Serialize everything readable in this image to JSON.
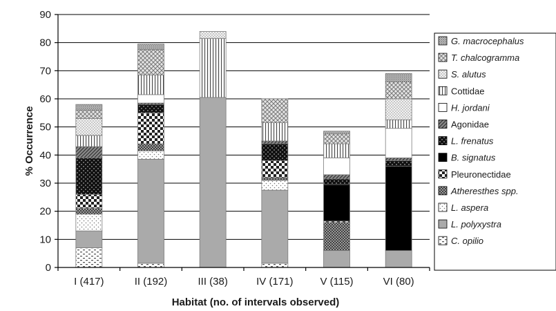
{
  "chart_data": {
    "type": "bar",
    "stacked": true,
    "title": "",
    "xlabel": "Habitat (no. of intervals observed)",
    "ylabel": "% Occurrence",
    "ylim": [
      0,
      90
    ],
    "yticks": [
      0,
      10,
      20,
      30,
      40,
      50,
      60,
      70,
      80,
      90
    ],
    "grid": true,
    "legend_position": "right",
    "categories": [
      "I (417)",
      "II (192)",
      "III (38)",
      "IV (171)",
      "V (115)",
      "VI (80)"
    ],
    "series": [
      {
        "name": "C. opilio",
        "italic": true,
        "pattern": "dash-dots",
        "values": [
          7,
          1.5,
          0,
          1.5,
          0,
          0
        ]
      },
      {
        "name": "L. polyxystra",
        "italic": true,
        "pattern": "solid-gray",
        "values": [
          6,
          37,
          60.5,
          26,
          6,
          6
        ]
      },
      {
        "name": "L. aspera",
        "italic": true,
        "pattern": "dots",
        "values": [
          6,
          3,
          0,
          3.5,
          0,
          0
        ]
      },
      {
        "name": "Atheresthes spp.",
        "italic": true,
        "pattern": "dense-check",
        "values": [
          2,
          2.5,
          0,
          1,
          10,
          0
        ]
      },
      {
        "name": "Pleuronectidae",
        "italic": false,
        "pattern": "checker",
        "values": [
          5,
          11,
          0,
          6,
          0.5,
          0
        ]
      },
      {
        "name": "B. signatus",
        "italic": true,
        "pattern": "solid-black",
        "values": [
          0,
          0,
          0,
          0,
          13,
          30
        ]
      },
      {
        "name": "L. frenatus",
        "italic": true,
        "pattern": "dark-check",
        "values": [
          13,
          3,
          0,
          6,
          2,
          2
        ]
      },
      {
        "name": "Agonidae",
        "italic": false,
        "pattern": "diagonal",
        "values": [
          4,
          0.5,
          0,
          1,
          1.5,
          1
        ]
      },
      {
        "name": "H. jordani",
        "italic": true,
        "pattern": "white",
        "values": [
          0,
          3,
          0,
          0,
          6,
          10.5
        ]
      },
      {
        "name": "Cottidae",
        "italic": false,
        "pattern": "vertical",
        "values": [
          4,
          7,
          21,
          6.5,
          5,
          3
        ]
      },
      {
        "name": "S. alutus",
        "italic": true,
        "pattern": "fine-dots",
        "values": [
          6,
          0,
          2.5,
          0,
          0,
          7.5
        ]
      },
      {
        "name": "T. chalcogramma",
        "italic": true,
        "pattern": "crosshatch",
        "values": [
          3,
          9,
          0,
          8.5,
          3.5,
          6
        ]
      },
      {
        "name": "G. macrocephalus",
        "italic": true,
        "pattern": "stipple",
        "values": [
          2,
          2,
          0,
          0,
          1,
          3
        ]
      }
    ]
  }
}
